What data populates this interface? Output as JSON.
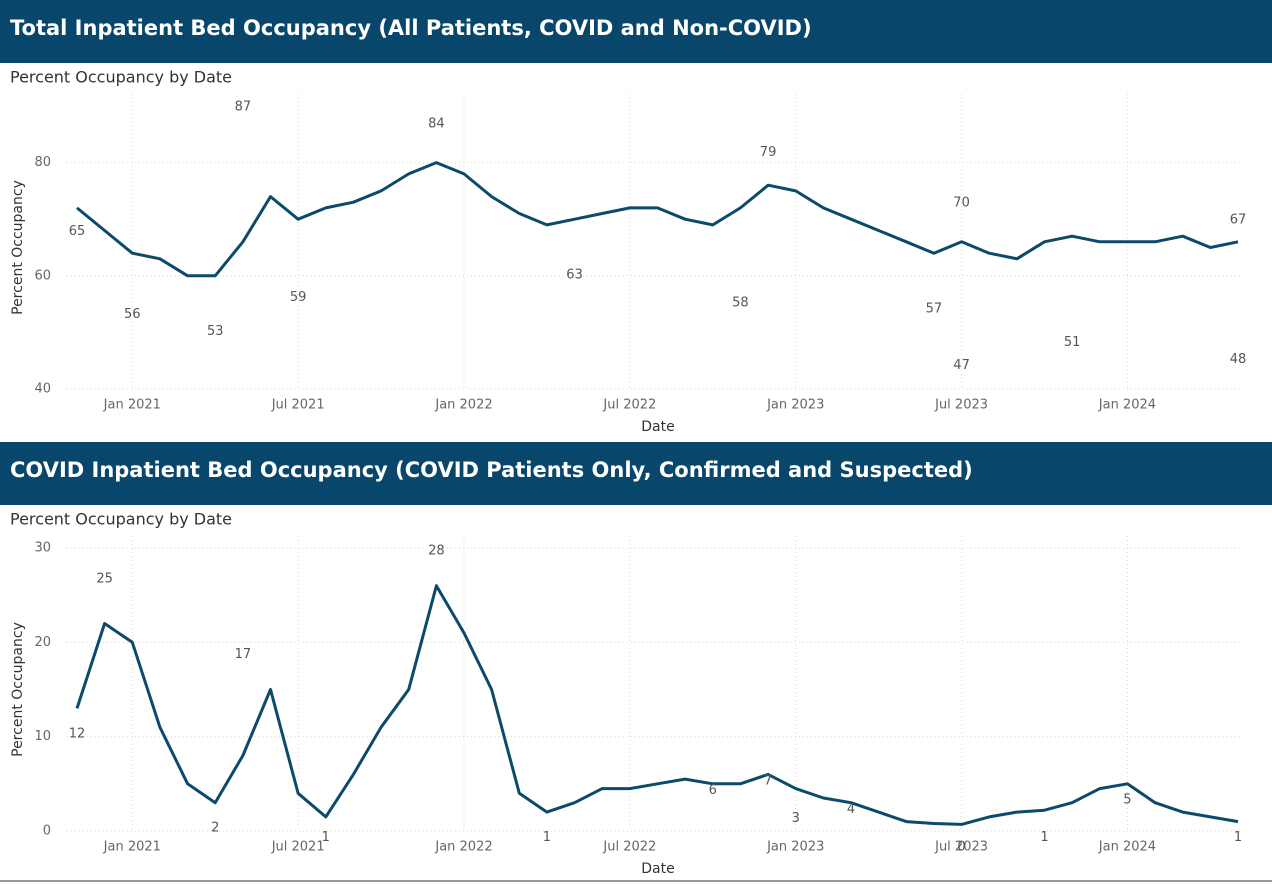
{
  "chart_data": [
    {
      "type": "line",
      "title": "Total Inpatient Bed Occupancy (All Patients, COVID and Non-COVID)",
      "subtitle": "Percent Occupancy by Date",
      "x_label": "Date",
      "y_label": "Percent Occupancy",
      "x": [
        "2020-11",
        "2020-12",
        "2021-01",
        "2021-02",
        "2021-03",
        "2021-04",
        "2021-05",
        "2021-06",
        "2021-07",
        "2021-08",
        "2021-09",
        "2021-10",
        "2021-11",
        "2021-12",
        "2022-01",
        "2022-02",
        "2022-03",
        "2022-04",
        "2022-05",
        "2022-06",
        "2022-07",
        "2022-08",
        "2022-09",
        "2022-10",
        "2022-11",
        "2022-12",
        "2023-01",
        "2023-02",
        "2023-03",
        "2023-04",
        "2023-05",
        "2023-06",
        "2023-07",
        "2023-08",
        "2023-09",
        "2023-10",
        "2023-11",
        "2023-12",
        "2024-01",
        "2024-02",
        "2024-03",
        "2024-04",
        "2024-05"
      ],
      "values": [
        72,
        68,
        64,
        63,
        60,
        60,
        66,
        74,
        70,
        72,
        73,
        75,
        78,
        80,
        78,
        74,
        71,
        69,
        70,
        71,
        72,
        72,
        70,
        69,
        72,
        76,
        75,
        72,
        70,
        68,
        66,
        64,
        66,
        64,
        63,
        66,
        67,
        66,
        66,
        66,
        67,
        65,
        66
      ],
      "color": "#0b4a6b",
      "ylim": [
        40,
        90
      ],
      "yticks": [
        40,
        60,
        80
      ],
      "xticks": [
        {
          "value": "2021-01",
          "label": "Jan 2021"
        },
        {
          "value": "2021-07",
          "label": "Jul 2021"
        },
        {
          "value": "2022-01",
          "label": "Jan 2022"
        },
        {
          "value": "2022-07",
          "label": "Jul 2022"
        },
        {
          "value": "2023-01",
          "label": "Jan 2023"
        },
        {
          "value": "2023-07",
          "label": "Jul 2023"
        },
        {
          "value": "2024-01",
          "label": "Jan 2024"
        }
      ],
      "grid": true,
      "annotations": [
        {
          "x": "2020-11",
          "value": 65
        },
        {
          "x": "2021-01",
          "value": 56
        },
        {
          "x": "2021-04",
          "value": 53
        },
        {
          "x": "2021-05",
          "value": 87
        },
        {
          "x": "2021-07",
          "value": 59
        },
        {
          "x": "2021-12",
          "value": 84
        },
        {
          "x": "2022-05",
          "value": 63
        },
        {
          "x": "2022-11",
          "value": 58
        },
        {
          "x": "2022-12",
          "value": 79
        },
        {
          "x": "2023-06",
          "value": 57
        },
        {
          "x": "2023-07",
          "value": 47
        },
        {
          "x": "2023-07",
          "value": 70
        },
        {
          "x": "2023-11",
          "value": 51
        },
        {
          "x": "2024-05",
          "value": 48
        },
        {
          "x": "2024-05",
          "value": 67
        }
      ]
    },
    {
      "type": "line",
      "title": "COVID Inpatient Bed Occupancy (COVID Patients Only, Confirmed and Suspected)",
      "subtitle": "Percent Occupancy by Date",
      "x_label": "Date",
      "y_label": "Percent Occupancy",
      "x": [
        "2020-11",
        "2020-12",
        "2021-01",
        "2021-02",
        "2021-03",
        "2021-04",
        "2021-05",
        "2021-06",
        "2021-07",
        "2021-08",
        "2021-09",
        "2021-10",
        "2021-11",
        "2021-12",
        "2022-01",
        "2022-02",
        "2022-03",
        "2022-04",
        "2022-05",
        "2022-06",
        "2022-07",
        "2022-08",
        "2022-09",
        "2022-10",
        "2022-11",
        "2022-12",
        "2023-01",
        "2023-02",
        "2023-03",
        "2023-04",
        "2023-05",
        "2023-06",
        "2023-07",
        "2023-08",
        "2023-09",
        "2023-10",
        "2023-11",
        "2023-12",
        "2024-01",
        "2024-02",
        "2024-03",
        "2024-04",
        "2024-05"
      ],
      "values": [
        13,
        22,
        20,
        11,
        5,
        3,
        8,
        15,
        4,
        1.5,
        6,
        11,
        15,
        26,
        21,
        15,
        4,
        2,
        3,
        4.5,
        4.5,
        5,
        5.5,
        5,
        5,
        6,
        4.5,
        3.5,
        3,
        2,
        1,
        0.8,
        0.7,
        1.5,
        2,
        2.2,
        3,
        4.5,
        5,
        3,
        2,
        1.5,
        1
      ],
      "color": "#0b4a6b",
      "ylim": [
        0,
        30
      ],
      "yticks": [
        0,
        10,
        20,
        30
      ],
      "xticks": [
        {
          "value": "2021-01",
          "label": "Jan 2021"
        },
        {
          "value": "2021-07",
          "label": "Jul 2021"
        },
        {
          "value": "2022-01",
          "label": "Jan 2022"
        },
        {
          "value": "2022-07",
          "label": "Jul 2022"
        },
        {
          "value": "2023-01",
          "label": "Jan 2023"
        },
        {
          "value": "2023-07",
          "label": "Jul 2023"
        },
        {
          "value": "2024-01",
          "label": "Jan 2024"
        }
      ],
      "grid": true,
      "annotations": [
        {
          "x": "2020-11",
          "value": 12
        },
        {
          "x": "2020-12",
          "value": 25
        },
        {
          "x": "2021-04",
          "value": 2
        },
        {
          "x": "2021-05",
          "value": 17
        },
        {
          "x": "2021-08",
          "value": 1
        },
        {
          "x": "2021-12",
          "value": 28
        },
        {
          "x": "2022-04",
          "value": 1
        },
        {
          "x": "2022-10",
          "value": 6
        },
        {
          "x": "2022-12",
          "value": 7
        },
        {
          "x": "2023-01",
          "value": 3
        },
        {
          "x": "2023-03",
          "value": 4
        },
        {
          "x": "2023-07",
          "value": 0
        },
        {
          "x": "2023-10",
          "value": 1
        },
        {
          "x": "2024-01",
          "value": 5
        },
        {
          "x": "2024-05",
          "value": 1
        }
      ]
    }
  ]
}
